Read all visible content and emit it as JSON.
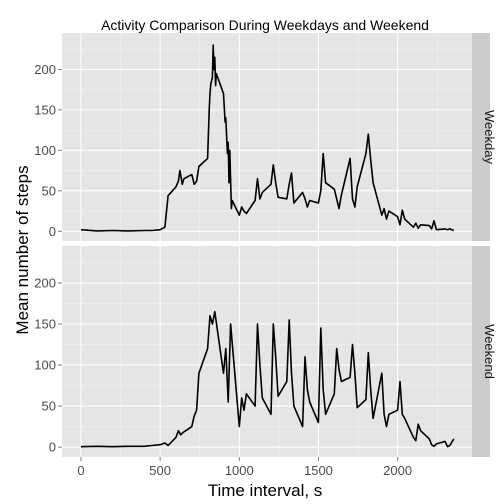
{
  "chart_data": {
    "type": "line",
    "title": "Activity Comparison During Weekdays and Weekend",
    "xlabel": "Time interval, s",
    "ylabel": "Mean number of steps",
    "xlim": [
      -120,
      2470
    ],
    "ylim": [
      -12,
      245
    ],
    "x_ticks": [
      0,
      500,
      1000,
      1500,
      2000
    ],
    "x_tick_labels": [
      "0",
      "500",
      "1000",
      "1500",
      "2000"
    ],
    "y_ticks": [
      0,
      50,
      100,
      150,
      200
    ],
    "y_tick_labels": [
      "0",
      "50",
      "100",
      "150",
      "200"
    ],
    "grid": true,
    "line_color": "#000000",
    "panel_background": "#e5e5e5",
    "strip_background": "#cccccc",
    "facets": [
      {
        "label": "Weekday",
        "x": [
          0,
          100,
          200,
          300,
          400,
          450,
          500,
          530,
          550,
          600,
          615,
          625,
          640,
          650,
          700,
          715,
          730,
          745,
          800,
          810,
          815,
          820,
          830,
          835,
          840,
          845,
          850,
          855,
          900,
          910,
          915,
          925,
          930,
          935,
          940,
          950,
          955,
          1000,
          1015,
          1030,
          1045,
          1100,
          1115,
          1130,
          1145,
          1200,
          1215,
          1230,
          1245,
          1300,
          1315,
          1330,
          1345,
          1400,
          1415,
          1430,
          1445,
          1500,
          1515,
          1530,
          1545,
          1600,
          1615,
          1630,
          1645,
          1700,
          1715,
          1730,
          1745,
          1800,
          1815,
          1830,
          1845,
          1900,
          1915,
          1930,
          1945,
          2000,
          2015,
          2030,
          2045,
          2100,
          2115,
          2130,
          2145,
          2200,
          2215,
          2230,
          2245,
          2300,
          2315,
          2330,
          2355
        ],
        "y": [
          2,
          0.5,
          1,
          0.5,
          1,
          1,
          2,
          5,
          44,
          55,
          62,
          75,
          58,
          65,
          70,
          58,
          62,
          80,
          90,
          150,
          170,
          182,
          190,
          230,
          200,
          215,
          180,
          195,
          170,
          135,
          140,
          96,
          110,
          60,
          100,
          28,
          38,
          20,
          30,
          25,
          22,
          38,
          65,
          40,
          48,
          58,
          82,
          60,
          42,
          40,
          58,
          72,
          35,
          48,
          40,
          30,
          38,
          35,
          50,
          96,
          60,
          52,
          40,
          28,
          45,
          90,
          40,
          30,
          55,
          96,
          120,
          88,
          60,
          20,
          28,
          15,
          25,
          18,
          8,
          26,
          15,
          5,
          10,
          4,
          8,
          7,
          3,
          13,
          2,
          3,
          2,
          3,
          1
        ]
      },
      {
        "label": "Weekend",
        "x": [
          0,
          100,
          200,
          300,
          400,
          450,
          500,
          530,
          550,
          600,
          615,
          630,
          645,
          700,
          715,
          730,
          745,
          800,
          815,
          830,
          845,
          900,
          915,
          930,
          945,
          1000,
          1015,
          1030,
          1045,
          1100,
          1115,
          1130,
          1145,
          1200,
          1215,
          1230,
          1245,
          1300,
          1315,
          1330,
          1345,
          1400,
          1415,
          1430,
          1445,
          1500,
          1515,
          1530,
          1545,
          1600,
          1615,
          1630,
          1645,
          1700,
          1715,
          1730,
          1745,
          1800,
          1815,
          1830,
          1845,
          1900,
          1915,
          1930,
          1945,
          2000,
          2015,
          2030,
          2045,
          2100,
          2115,
          2130,
          2145,
          2200,
          2215,
          2230,
          2245,
          2300,
          2315,
          2330,
          2355
        ],
        "y": [
          0.5,
          1,
          0.5,
          1,
          1,
          2,
          3,
          5,
          2,
          12,
          20,
          15,
          18,
          25,
          38,
          45,
          90,
          120,
          160,
          150,
          165,
          90,
          120,
          55,
          150,
          25,
          60,
          45,
          65,
          50,
          150,
          100,
          60,
          40,
          150,
          110,
          62,
          80,
          155,
          90,
          50,
          25,
          110,
          70,
          55,
          30,
          145,
          70,
          40,
          65,
          120,
          95,
          80,
          85,
          125,
          90,
          48,
          58,
          115,
          70,
          35,
          90,
          40,
          25,
          40,
          45,
          80,
          40,
          35,
          12,
          8,
          28,
          20,
          10,
          3,
          1,
          4,
          7,
          0.5,
          2,
          10
        ]
      }
    ]
  }
}
